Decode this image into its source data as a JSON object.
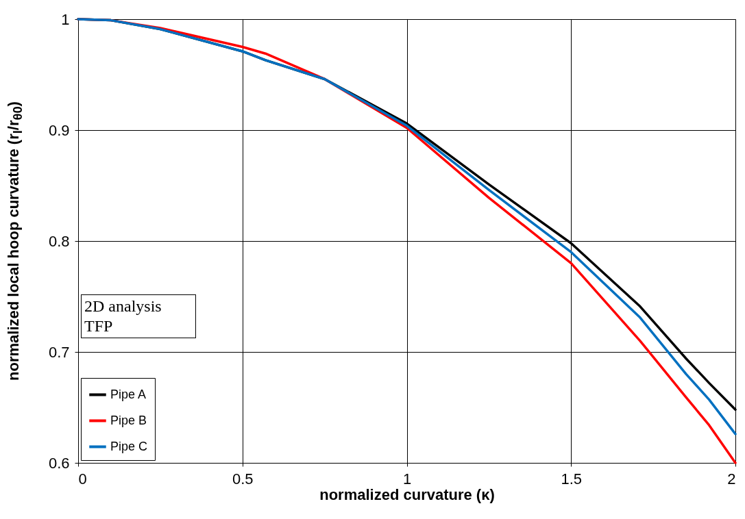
{
  "chart_data": {
    "type": "line",
    "xlabel": "normalized curvature (κ)",
    "ylabel": "normalized local hoop curvature (r$_{l}$/r$_{θ0}$)",
    "x": [
      0,
      0.1,
      0.25,
      0.5,
      0.57,
      0.75,
      1,
      1.25,
      1.5,
      1.71,
      1.85,
      1.92,
      2
    ],
    "series": [
      {
        "name": "Pipe A",
        "color": "#000000",
        "values": [
          1,
          0.999,
          0.991,
          0.971,
          0.963,
          0.946,
          0.906,
          0.851,
          0.798,
          0.741,
          0.694,
          0.672,
          0.648
        ]
      },
      {
        "name": "Pipe B",
        "color": "#ff0000",
        "values": [
          1,
          0.999,
          0.992,
          0.975,
          0.969,
          0.946,
          0.902,
          0.839,
          0.78,
          0.71,
          0.659,
          0.634,
          0.6
        ]
      },
      {
        "name": "Pipe C",
        "color": "#0070c0",
        "values": [
          1,
          0.999,
          0.991,
          0.971,
          0.963,
          0.946,
          0.904,
          0.846,
          0.79,
          0.731,
          0.68,
          0.657,
          0.626
        ]
      }
    ],
    "xlim": [
      0,
      2
    ],
    "xticks": [
      0,
      0.5,
      1,
      1.5,
      2
    ],
    "ylim": [
      0.6,
      1
    ],
    "yticks": [
      0.6,
      0.7,
      0.8,
      0.9,
      1
    ],
    "grid": true,
    "legend": "bottom left",
    "line_style": "solid",
    "annotations": [
      "2D analysis\nTFP"
    ]
  }
}
